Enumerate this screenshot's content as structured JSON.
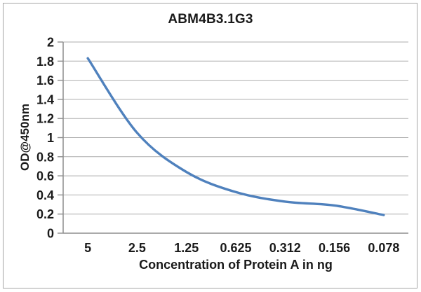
{
  "page": {
    "background": "#ffffff"
  },
  "chart_data": {
    "type": "line",
    "title": "ABM4B3.1G3",
    "xlabel": "Concentration of Protein A in ng",
    "ylabel": "OD@450nm",
    "categories": [
      "5",
      "2.5",
      "1.25",
      "0.625",
      "0.312",
      "0.156",
      "0.078"
    ],
    "series": [
      {
        "values": [
          1.83,
          1.05,
          0.64,
          0.43,
          0.33,
          0.29,
          0.19
        ],
        "color": "#4f81bd"
      }
    ],
    "ylim": [
      0,
      2
    ],
    "ytick_step": 0.2,
    "yticks": [
      "0",
      "0.2",
      "0.4",
      "0.6",
      "0.8",
      "1",
      "1.2",
      "1.4",
      "1.6",
      "1.8",
      "2"
    ],
    "grid": "horizontal",
    "legend": "none",
    "line_smooth": true,
    "markers": "none"
  },
  "colors": {
    "line": "#4f81bd",
    "grid": "#aeaeae",
    "axis": "#8e8e8e",
    "text": "#1a1a1a",
    "frame": "#a6a6a6"
  }
}
